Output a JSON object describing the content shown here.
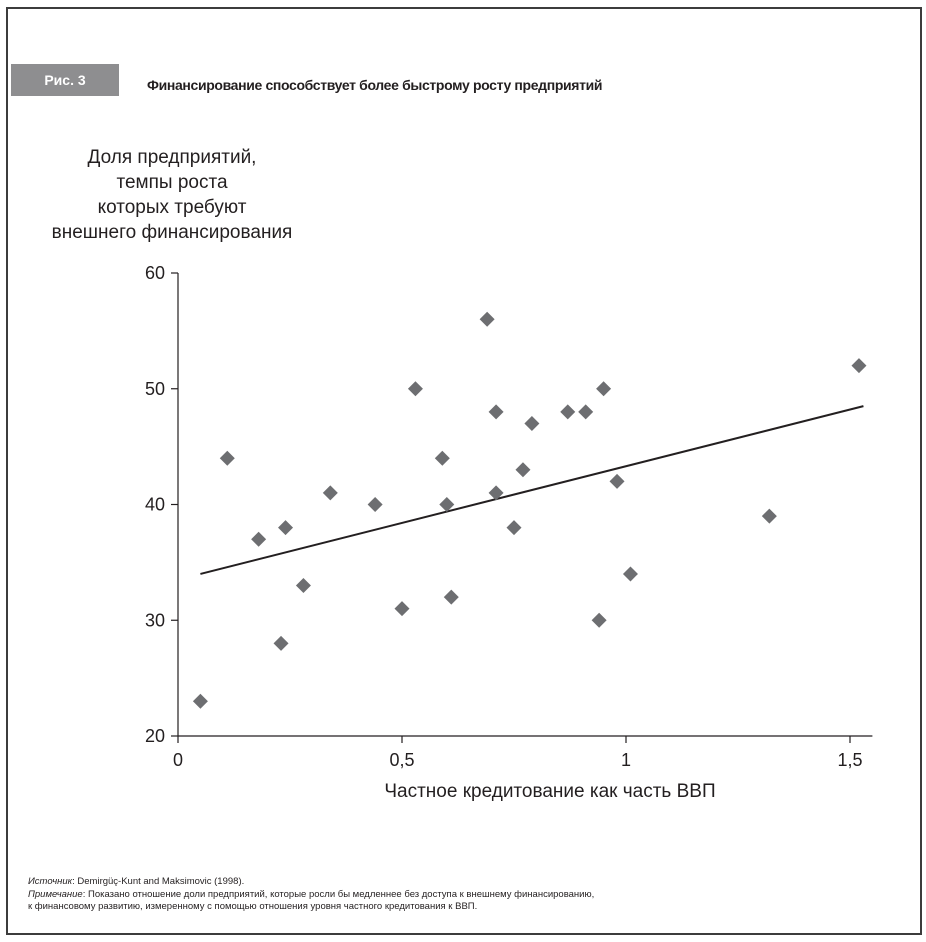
{
  "figure": {
    "badge": "Рис. 3",
    "title": "Финансирование способствует более быстрому росту предприятий"
  },
  "chart_data": {
    "type": "scatter",
    "ylabel": "Доля предприятий,\nтемпы роста\nкоторых требуют\nвнешнего финансирования",
    "xlabel": "Частное кредитование как часть ВВП",
    "xlim": [
      0,
      1.55
    ],
    "ylim": [
      20,
      60
    ],
    "x_ticks": [
      0,
      0.5,
      1,
      1.5
    ],
    "x_tick_labels": [
      "0",
      "0,5",
      "1",
      "1,5"
    ],
    "y_ticks": [
      20,
      30,
      40,
      50,
      60
    ],
    "y_tick_labels": [
      "20",
      "30",
      "40",
      "50",
      "60"
    ],
    "grid": false,
    "marker": "diamond",
    "marker_color": "#6d6e71",
    "line_color": "#231f20",
    "points": [
      {
        "x": 0.05,
        "y": 23
      },
      {
        "x": 0.11,
        "y": 44
      },
      {
        "x": 0.18,
        "y": 37
      },
      {
        "x": 0.23,
        "y": 28
      },
      {
        "x": 0.24,
        "y": 38
      },
      {
        "x": 0.28,
        "y": 33
      },
      {
        "x": 0.34,
        "y": 41
      },
      {
        "x": 0.44,
        "y": 40
      },
      {
        "x": 0.5,
        "y": 31
      },
      {
        "x": 0.53,
        "y": 50
      },
      {
        "x": 0.59,
        "y": 44
      },
      {
        "x": 0.6,
        "y": 40
      },
      {
        "x": 0.61,
        "y": 32
      },
      {
        "x": 0.69,
        "y": 56
      },
      {
        "x": 0.71,
        "y": 41
      },
      {
        "x": 0.71,
        "y": 48
      },
      {
        "x": 0.75,
        "y": 38
      },
      {
        "x": 0.77,
        "y": 43
      },
      {
        "x": 0.79,
        "y": 47
      },
      {
        "x": 0.87,
        "y": 48
      },
      {
        "x": 0.91,
        "y": 48
      },
      {
        "x": 0.94,
        "y": 30
      },
      {
        "x": 0.95,
        "y": 50
      },
      {
        "x": 0.98,
        "y": 42
      },
      {
        "x": 1.01,
        "y": 34
      },
      {
        "x": 1.32,
        "y": 39
      },
      {
        "x": 1.52,
        "y": 52
      }
    ],
    "trendline": {
      "x": [
        0.05,
        1.53
      ],
      "y": [
        34,
        48.5
      ]
    }
  },
  "notes": {
    "source_label": "Источник",
    "source_text": ": Demirgüç-Kunt and Maksimovic (1998).",
    "note_label": "Примечание",
    "note_text": ": Показано отношение доли предприятий, которые росли бы медленнее без доступа к внешнему финансированию,",
    "note_text_2": "к финансовому развитию, измеренному с помощью отношения уровня частного кредитования к ВВП."
  }
}
